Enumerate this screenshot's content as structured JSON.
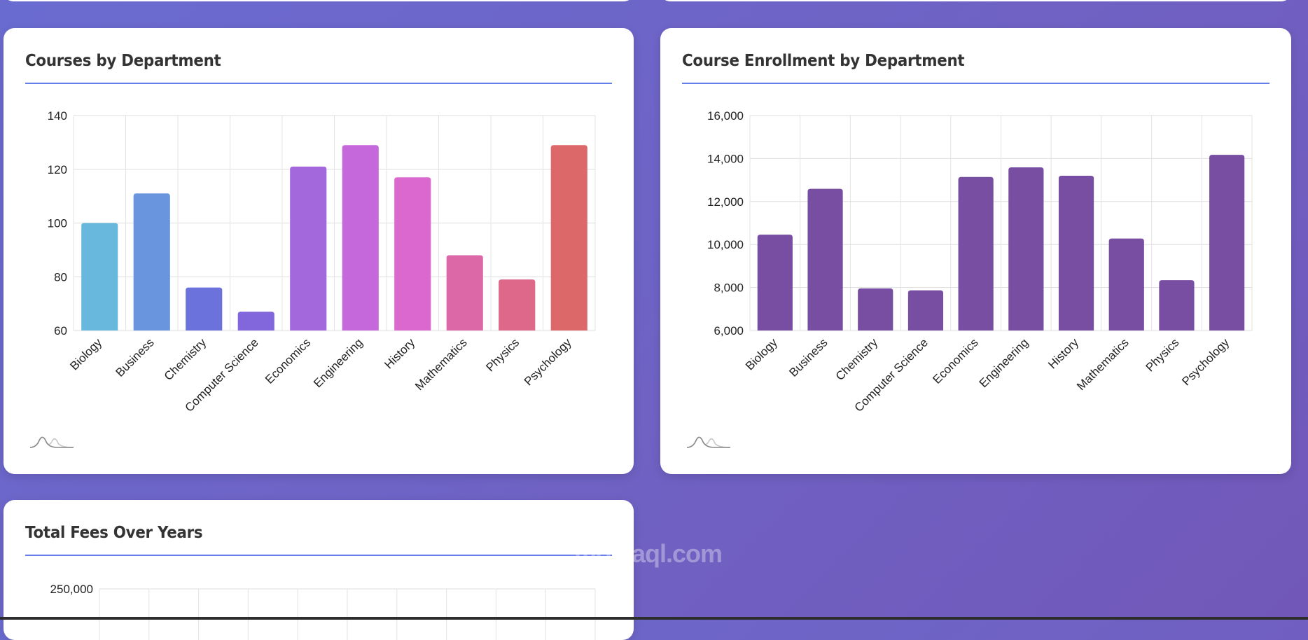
{
  "chart_data": [
    {
      "type": "bar",
      "title": "Courses by Department",
      "categories": [
        "Biology",
        "Business",
        "Chemistry",
        "Computer Science",
        "Economics",
        "Engineering",
        "History",
        "Mathematics",
        "Physics",
        "Psychology"
      ],
      "values": [
        100,
        111,
        76,
        67,
        121,
        129,
        117,
        88,
        79,
        129
      ],
      "ylim": [
        60,
        140
      ],
      "yticks": [
        "60",
        "80",
        "100",
        "120",
        "140"
      ],
      "ytick_values": [
        60,
        80,
        100,
        120,
        140
      ],
      "grid": true,
      "colors": [
        "#68b8de",
        "#6895dd",
        "#6b72dc",
        "#8267dc",
        "#a368dc",
        "#c568dc",
        "#db68cf",
        "#dc68a8",
        "#dd6889",
        "#dd6869"
      ]
    },
    {
      "type": "bar",
      "title": "Course Enrollment by Department",
      "categories": [
        "Biology",
        "Business",
        "Chemistry",
        "Computer Science",
        "Economics",
        "Engineering",
        "History",
        "Mathematics",
        "Physics",
        "Psychology"
      ],
      "values": [
        10460,
        12590,
        7960,
        7870,
        13140,
        13590,
        13200,
        10280,
        8340,
        14170
      ],
      "ylim": [
        6000,
        16000
      ],
      "yticks": [
        "6,000",
        "8,000",
        "10,000",
        "12,000",
        "14,000",
        "16,000"
      ],
      "ytick_values": [
        6000,
        8000,
        10000,
        12000,
        14000,
        16000
      ],
      "grid": true,
      "colors": [
        "#774ea1"
      ]
    },
    {
      "type": "bar",
      "title": "Total Fees Over Years",
      "yticks": [
        "250,000"
      ],
      "grid": true
    }
  ],
  "icons": {
    "chart_logo": "bell-curve-icon"
  },
  "theme": {
    "accent": "#667eea",
    "background": "#6a6bd0"
  },
  "watermark": "mostaql.com"
}
